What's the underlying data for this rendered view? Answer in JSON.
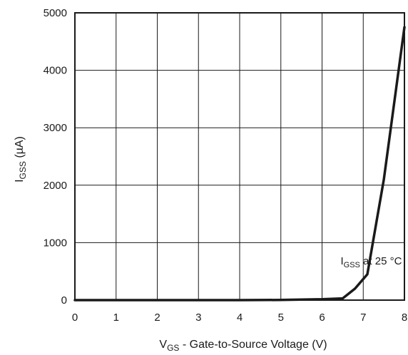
{
  "chart_data": {
    "type": "line",
    "xlabel": {
      "main": "V",
      "sub": "GS",
      "rest": " - Gate-to-Source Voltage (V)"
    },
    "ylabel": {
      "main": "I",
      "sub": "GSS",
      "rest": " (µA)"
    },
    "annotation": {
      "main": "I",
      "sub": "GSS",
      "rest": " at 25 °C",
      "x": 6.45,
      "y": 620
    },
    "xlim": [
      0,
      8
    ],
    "ylim": [
      0,
      5000
    ],
    "xticks": [
      0,
      1,
      2,
      3,
      4,
      5,
      6,
      7,
      8
    ],
    "yticks": [
      0,
      1000,
      2000,
      3000,
      4000,
      5000
    ],
    "grid": true,
    "series": [
      {
        "color": "#1a1a1a",
        "x": [
          0,
          1,
          2,
          3,
          4,
          5,
          6,
          6.5,
          6.8,
          7.1,
          7.5,
          8.0
        ],
        "y": [
          0,
          0,
          0,
          0,
          0,
          3,
          15,
          30,
          200,
          450,
          2100,
          4750
        ]
      }
    ]
  }
}
